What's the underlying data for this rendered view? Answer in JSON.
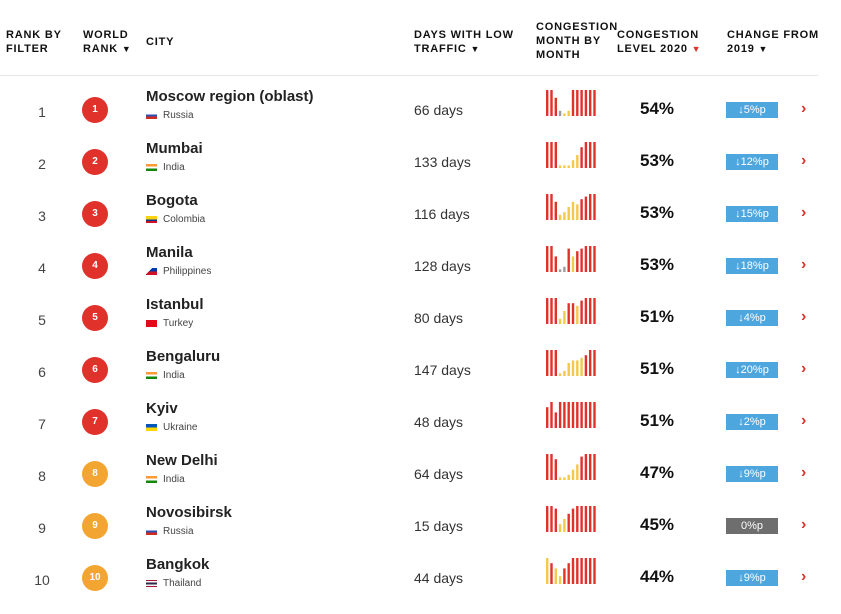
{
  "colors": {
    "red": "#e0312b",
    "orange": "#f2a531",
    "blue": "#4ea6de",
    "gray": "#6e6e6e",
    "bar_red": "#e0312b",
    "bar_yellow": "#f2c94c",
    "bar_gray": "#9c9c9c"
  },
  "headers": {
    "rank_by_filter": "RANK BY FILTER",
    "world_rank": "WORLD RANK",
    "city": "CITY",
    "days_low_traffic": "DAYS WITH LOW TRAFFIC",
    "congestion_month": "CONGESTION MONTH BY MONTH",
    "congestion_level": "CONGESTION LEVEL 2020",
    "change": "CHANGE FROM 2019"
  },
  "rows": [
    {
      "rank": "1",
      "world_rank": "1",
      "badge": "red",
      "city": "Moscow region (oblast)",
      "country": "Russia",
      "flag": "russia",
      "days": "66 days",
      "bars": [
        1,
        1,
        0.7,
        0.2,
        0.1,
        0.2,
        1,
        1,
        1,
        1,
        1,
        1
      ],
      "bar_colors": [
        "r",
        "r",
        "r",
        "g",
        "y",
        "y",
        "r",
        "r",
        "r",
        "r",
        "r",
        "r"
      ],
      "level": "54%",
      "change": "↓5%p",
      "change_color": "blue"
    },
    {
      "rank": "2",
      "world_rank": "2",
      "badge": "red",
      "city": "Mumbai",
      "country": "India",
      "flag": "india",
      "days": "133 days",
      "bars": [
        1,
        1,
        1,
        0.1,
        0.1,
        0.1,
        0.3,
        0.5,
        0.8,
        1,
        1,
        1
      ],
      "bar_colors": [
        "r",
        "r",
        "r",
        "y",
        "y",
        "y",
        "y",
        "y",
        "r",
        "r",
        "r",
        "r"
      ],
      "level": "53%",
      "change": "↓12%p",
      "change_color": "blue"
    },
    {
      "rank": "3",
      "world_rank": "3",
      "badge": "red",
      "city": "Bogota",
      "country": "Colombia",
      "flag": "colombia",
      "days": "116 days",
      "bars": [
        1,
        1,
        0.7,
        0.2,
        0.3,
        0.5,
        0.7,
        0.6,
        0.8,
        0.9,
        1,
        1
      ],
      "bar_colors": [
        "r",
        "r",
        "r",
        "y",
        "y",
        "y",
        "y",
        "y",
        "r",
        "r",
        "r",
        "r"
      ],
      "level": "53%",
      "change": "↓15%p",
      "change_color": "blue"
    },
    {
      "rank": "4",
      "world_rank": "4",
      "badge": "red",
      "city": "Manila",
      "country": "Philippines",
      "flag": "philippines",
      "days": "128 days",
      "bars": [
        1,
        1,
        0.6,
        0.1,
        0.2,
        0.9,
        0.6,
        0.8,
        0.9,
        1,
        1,
        1
      ],
      "bar_colors": [
        "r",
        "r",
        "r",
        "g",
        "g",
        "r",
        "y",
        "r",
        "r",
        "r",
        "r",
        "r"
      ],
      "level": "53%",
      "change": "↓18%p",
      "change_color": "blue"
    },
    {
      "rank": "5",
      "world_rank": "5",
      "badge": "red",
      "city": "Istanbul",
      "country": "Turkey",
      "flag": "turkey",
      "days": "80 days",
      "bars": [
        1,
        1,
        1,
        0.2,
        0.5,
        0.8,
        0.8,
        0.7,
        0.9,
        1,
        1,
        1
      ],
      "bar_colors": [
        "r",
        "r",
        "r",
        "y",
        "y",
        "r",
        "r",
        "y",
        "r",
        "r",
        "r",
        "r"
      ],
      "level": "51%",
      "change": "↓4%p",
      "change_color": "blue"
    },
    {
      "rank": "6",
      "world_rank": "6",
      "badge": "red",
      "city": "Bengaluru",
      "country": "India",
      "flag": "india",
      "days": "147 days",
      "bars": [
        1,
        1,
        1,
        0.1,
        0.2,
        0.5,
        0.6,
        0.6,
        0.7,
        0.8,
        1,
        1
      ],
      "bar_colors": [
        "r",
        "r",
        "r",
        "y",
        "y",
        "y",
        "y",
        "y",
        "y",
        "r",
        "r",
        "r"
      ],
      "level": "51%",
      "change": "↓20%p",
      "change_color": "blue"
    },
    {
      "rank": "7",
      "world_rank": "7",
      "badge": "red",
      "city": "Kyiv",
      "country": "Ukraine",
      "flag": "ukraine",
      "days": "48 days",
      "bars": [
        0.8,
        1,
        0.6,
        1,
        1,
        1,
        1,
        1,
        1,
        1,
        1,
        1
      ],
      "bar_colors": [
        "r",
        "r",
        "r",
        "r",
        "r",
        "r",
        "r",
        "r",
        "r",
        "r",
        "r",
        "r"
      ],
      "level": "51%",
      "change": "↓2%p",
      "change_color": "blue"
    },
    {
      "rank": "8",
      "world_rank": "8",
      "badge": "orange",
      "city": "New Delhi",
      "country": "India",
      "flag": "india",
      "days": "64 days",
      "bars": [
        1,
        1,
        0.8,
        0.1,
        0.1,
        0.2,
        0.4,
        0.6,
        0.9,
        1,
        1,
        1
      ],
      "bar_colors": [
        "r",
        "r",
        "r",
        "y",
        "y",
        "y",
        "y",
        "y",
        "r",
        "r",
        "r",
        "r"
      ],
      "level": "47%",
      "change": "↓9%p",
      "change_color": "blue"
    },
    {
      "rank": "9",
      "world_rank": "9",
      "badge": "orange",
      "city": "Novosibirsk",
      "country": "Russia",
      "flag": "russia",
      "days": "15 days",
      "bars": [
        1,
        1,
        0.9,
        0.3,
        0.5,
        0.7,
        0.9,
        1,
        1,
        1,
        1,
        1
      ],
      "bar_colors": [
        "r",
        "r",
        "r",
        "y",
        "y",
        "r",
        "r",
        "r",
        "r",
        "r",
        "r",
        "r"
      ],
      "level": "45%",
      "change": "0%p",
      "change_color": "gray"
    },
    {
      "rank": "10",
      "world_rank": "10",
      "badge": "orange",
      "city": "Bangkok",
      "country": "Thailand",
      "flag": "thailand",
      "days": "44 days",
      "bars": [
        1,
        0.8,
        0.6,
        0.3,
        0.6,
        0.8,
        1,
        1,
        1,
        1,
        1,
        1
      ],
      "bar_colors": [
        "y",
        "r",
        "y",
        "y",
        "r",
        "r",
        "r",
        "r",
        "r",
        "r",
        "r",
        "r"
      ],
      "level": "44%",
      "change": "↓9%p",
      "change_color": "blue"
    }
  ]
}
